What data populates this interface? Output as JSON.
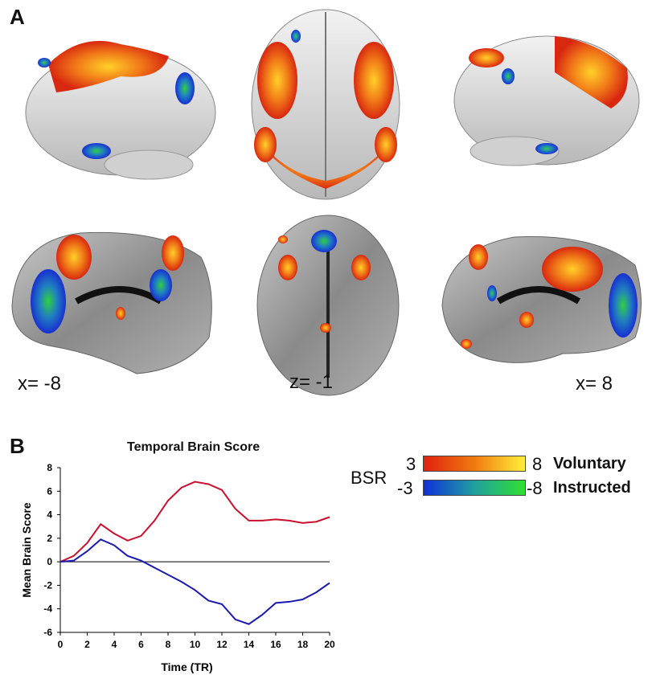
{
  "panels": {
    "a_label": "A",
    "b_label": "B"
  },
  "slice_labels": {
    "left": "x= -8",
    "middle": "z= -1",
    "right": "x= 8"
  },
  "legend": {
    "bsr_label": "BSR",
    "voluntary": {
      "min": "3",
      "max": "8",
      "label": "Voluntary",
      "colors": [
        "#e02010",
        "#f07a10",
        "#fff03a"
      ]
    },
    "instructed": {
      "min": "-3",
      "max": "-8",
      "label": "Instructed",
      "colors": [
        "#1030d8",
        "#20a0a0",
        "#30e030"
      ]
    }
  },
  "chart_data": {
    "type": "line",
    "title": "Temporal Brain Score",
    "xlabel": "Time (TR)",
    "ylabel": "Mean Brain Score",
    "xlim": [
      0,
      20
    ],
    "ylim": [
      -6,
      8
    ],
    "xticks": [
      0,
      2,
      4,
      6,
      8,
      10,
      12,
      14,
      16,
      18,
      20
    ],
    "yticks": [
      -6,
      -4,
      -2,
      0,
      2,
      4,
      6,
      8
    ],
    "x": [
      0,
      1,
      2,
      3,
      4,
      5,
      6,
      7,
      8,
      9,
      10,
      11,
      12,
      13,
      14,
      15,
      16,
      17,
      18,
      19,
      20
    ],
    "series": [
      {
        "color": "#c8102e",
        "values": [
          0,
          0.5,
          1.6,
          3.2,
          2.4,
          1.8,
          2.2,
          3.5,
          5.2,
          6.3,
          6.8,
          6.6,
          6.1,
          4.5,
          3.5,
          3.5,
          3.6,
          3.5,
          3.3,
          3.4,
          3.8
        ]
      },
      {
        "color": "#1a1ab0",
        "values": [
          0,
          0.1,
          0.9,
          1.9,
          1.4,
          0.5,
          0.1,
          -0.5,
          -1.1,
          -1.7,
          -2.4,
          -3.3,
          -3.6,
          -4.9,
          -5.3,
          -4.5,
          -3.5,
          -3.4,
          -3.2,
          -2.6,
          -1.8
        ]
      }
    ],
    "grid": false,
    "zero_line": true
  }
}
